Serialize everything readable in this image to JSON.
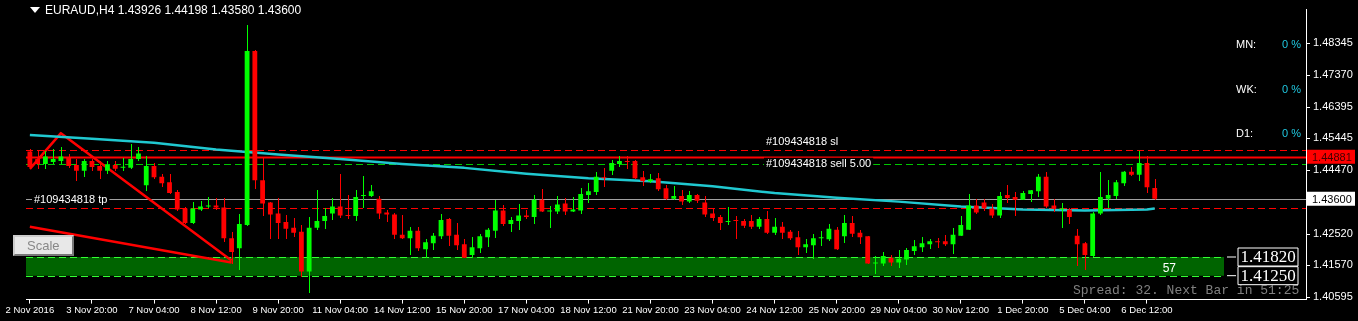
{
  "chart_data": {
    "type": "candlestick",
    "title": "EURAUD,H4 1.43926 1.44198 1.43580 1.43600",
    "categories": [
      "2 Nov 2016",
      null,
      null,
      null,
      null,
      null,
      null,
      null,
      "3 Nov 20:00",
      null,
      null,
      null,
      null,
      null,
      null,
      null,
      "7 Nov 04:00",
      null,
      null,
      null,
      null,
      null,
      null,
      null,
      "8 Nov 12:00",
      null,
      null,
      null,
      null,
      null,
      null,
      null,
      "9 Nov 20:00",
      null,
      null,
      null,
      null,
      null,
      null,
      null,
      "11 Nov 04:00",
      null,
      null,
      null,
      null,
      null,
      null,
      null,
      "14 Nov 12:00",
      null,
      null,
      null,
      null,
      null,
      null,
      null,
      "15 Nov 20:00",
      null,
      null,
      null,
      null,
      null,
      null,
      null,
      "17 Nov 04:00",
      null,
      null,
      null,
      null,
      null,
      null,
      null,
      "18 Nov 12:00",
      null,
      null,
      null,
      null,
      null,
      null,
      null,
      "21 Nov 20:00",
      null,
      null,
      null,
      null,
      null,
      null,
      null,
      "23 Nov 04:00",
      null,
      null,
      null,
      null,
      null,
      null,
      null,
      "24 Nov 12:00",
      null,
      null,
      null,
      null,
      null,
      null,
      null,
      "25 Nov 20:00",
      null,
      null,
      null,
      null,
      null,
      null,
      null,
      "29 Nov 04:00",
      null,
      null,
      null,
      null,
      null,
      null,
      null,
      "30 Nov 12:00",
      null,
      null,
      null,
      null,
      null,
      null,
      null,
      "1 Dec 20:00",
      null,
      null,
      null,
      null,
      null,
      null,
      null,
      "5 Dec 04:00",
      null,
      null,
      null,
      null,
      null,
      null,
      null,
      "6 Dec 12:00",
      null,
      null,
      null,
      null,
      null,
      null,
      null,
      null,
      null,
      null,
      null,
      null,
      null,
      null,
      null,
      null,
      null,
      null,
      null,
      null
    ],
    "ohlc": [
      [
        1.4504,
        1.451,
        1.4451,
        1.4457
      ],
      [
        1.4481,
        1.4507,
        1.4451,
        1.4466
      ],
      [
        1.4466,
        1.4504,
        1.4451,
        1.4489
      ],
      [
        1.4472,
        1.451,
        1.4466,
        1.4481
      ],
      [
        1.4475,
        1.4516,
        1.4466,
        1.4489
      ],
      [
        1.4486,
        1.4495,
        1.4454,
        1.446
      ],
      [
        1.4463,
        1.4481,
        1.4416,
        1.4445
      ],
      [
        1.4445,
        1.4481,
        1.4427,
        1.4475
      ],
      [
        1.4475,
        1.4481,
        1.4445,
        1.4457
      ],
      [
        1.446,
        1.4472,
        1.4422,
        1.4445
      ],
      [
        1.4445,
        1.4472,
        1.4436,
        1.4463
      ],
      [
        1.4463,
        1.4472,
        1.4445,
        1.4451
      ],
      [
        1.4454,
        1.4484,
        1.4445,
        1.4457
      ],
      [
        1.4454,
        1.4525,
        1.4451,
        1.4481
      ],
      [
        1.4481,
        1.4516,
        1.4475,
        1.4498
      ],
      [
        1.4401,
        1.4489,
        1.4386,
        1.446
      ],
      [
        1.446,
        1.4466,
        1.4422,
        1.4425
      ],
      [
        1.4427,
        1.4433,
        1.4398,
        1.4407
      ],
      [
        1.441,
        1.4433,
        1.4377,
        1.4377
      ],
      [
        1.438,
        1.4386,
        1.4324,
        1.4327
      ],
      [
        1.433,
        1.4333,
        1.4283,
        1.4286
      ],
      [
        1.4286,
        1.4348,
        1.4283,
        1.433
      ],
      [
        1.4327,
        1.4351,
        1.4324,
        1.4336
      ],
      [
        1.4336,
        1.4365,
        1.4333,
        1.4339
      ],
      [
        1.4339,
        1.4362,
        1.4327,
        1.4333
      ],
      [
        1.4333,
        1.4362,
        1.423,
        1.4239
      ],
      [
        1.4239,
        1.4256,
        1.4162,
        1.4197
      ],
      [
        1.4209,
        1.4312,
        1.4144,
        1.4283
      ],
      [
        1.428,
        1.4888,
        1.4277,
        1.4811
      ],
      [
        1.4811,
        1.4811,
        1.4392,
        1.4416
      ],
      [
        1.4416,
        1.4486,
        1.4309,
        1.4345
      ],
      [
        1.4348,
        1.4348,
        1.4239,
        1.4312
      ],
      [
        1.4315,
        1.436,
        1.4239,
        1.4286
      ],
      [
        1.4289,
        1.4309,
        1.4239,
        1.4268
      ],
      [
        1.4271,
        1.4298,
        1.4245,
        1.4256
      ],
      [
        1.4259,
        1.4277,
        1.4121,
        1.4138
      ],
      [
        1.4138,
        1.4304,
        1.4073,
        1.4271
      ],
      [
        1.4271,
        1.4386,
        1.4265,
        1.4292
      ],
      [
        1.4292,
        1.433,
        1.4268,
        1.4307
      ],
      [
        1.4315,
        1.436,
        1.4295,
        1.4336
      ],
      [
        1.4336,
        1.4433,
        1.4304,
        1.4309
      ],
      [
        1.4309,
        1.4371,
        1.4301,
        1.4307
      ],
      [
        1.4307,
        1.4386,
        1.4292,
        1.4365
      ],
      [
        1.4368,
        1.4427,
        1.4333,
        1.4371
      ],
      [
        1.4368,
        1.4401,
        1.4368,
        1.4383
      ],
      [
        1.436,
        1.4368,
        1.4298,
        1.4315
      ],
      [
        1.4318,
        1.4324,
        1.4289,
        1.4312
      ],
      [
        1.4312,
        1.4315,
        1.4239,
        1.425
      ],
      [
        1.425,
        1.4309,
        1.4239,
        1.4239
      ],
      [
        1.4239,
        1.4271,
        1.4191,
        1.4262
      ],
      [
        1.4262,
        1.4271,
        1.4203,
        1.4209
      ],
      [
        1.4206,
        1.4236,
        1.418,
        1.4227
      ],
      [
        1.4224,
        1.4253,
        1.4206,
        1.4247
      ],
      [
        1.4245,
        1.4312,
        1.4239,
        1.4295
      ],
      [
        1.4298,
        1.4301,
        1.4218,
        1.4247
      ],
      [
        1.425,
        1.4283,
        1.4206,
        1.4218
      ],
      [
        1.4221,
        1.4236,
        1.418,
        1.418
      ],
      [
        1.4188,
        1.4242,
        1.418,
        1.4212
      ],
      [
        1.4209,
        1.425,
        1.4197,
        1.4245
      ],
      [
        1.4242,
        1.4268,
        1.4215,
        1.4265
      ],
      [
        1.4262,
        1.4354,
        1.4242,
        1.4324
      ],
      [
        1.4324,
        1.4339,
        1.4277,
        1.4283
      ],
      [
        1.4283,
        1.4304,
        1.4259,
        1.4295
      ],
      [
        1.4292,
        1.4342,
        1.4265,
        1.4309
      ],
      [
        1.4309,
        1.4324,
        1.4298,
        1.4304
      ],
      [
        1.4304,
        1.4371,
        1.4283,
        1.4357
      ],
      [
        1.4357,
        1.4389,
        1.4321,
        1.4321
      ],
      [
        1.4321,
        1.4336,
        1.4271,
        1.4324
      ],
      [
        1.4321,
        1.4368,
        1.4315,
        1.4342
      ],
      [
        1.4345,
        1.4362,
        1.4312,
        1.4321
      ],
      [
        1.4321,
        1.4365,
        1.4321,
        1.4327
      ],
      [
        1.4324,
        1.4392,
        1.4315,
        1.4374
      ],
      [
        1.4371,
        1.4407,
        1.4348,
        1.4383
      ],
      [
        1.438,
        1.4439,
        1.4374,
        1.4427
      ],
      [
        1.4425,
        1.4451,
        1.4398,
        1.4422
      ],
      [
        1.4445,
        1.4475,
        1.4433,
        1.4469
      ],
      [
        1.4466,
        1.4489,
        1.4457,
        1.4475
      ],
      [
        1.4475,
        1.4489,
        1.4451,
        1.4472
      ],
      [
        1.4475,
        1.4475,
        1.4422,
        1.4422
      ],
      [
        1.4425,
        1.4442,
        1.4401,
        1.4413
      ],
      [
        1.4413,
        1.4433,
        1.441,
        1.4419
      ],
      [
        1.4422,
        1.4436,
        1.4386,
        1.4389
      ],
      [
        1.4392,
        1.4401,
        1.4357,
        1.436
      ],
      [
        1.436,
        1.4398,
        1.4357,
        1.4368
      ],
      [
        1.4368,
        1.4386,
        1.4342,
        1.4351
      ],
      [
        1.4351,
        1.4383,
        1.4348,
        1.4371
      ],
      [
        1.4371,
        1.4374,
        1.4348,
        1.4354
      ],
      [
        1.4348,
        1.4368,
        1.4307,
        1.4312
      ],
      [
        1.4315,
        1.4327,
        1.4292,
        1.4301
      ],
      [
        1.4304,
        1.4309,
        1.4265,
        1.4286
      ],
      [
        1.4289,
        1.4333,
        1.428,
        1.4292
      ],
      [
        1.4295,
        1.4307,
        1.4239,
        1.4292
      ],
      [
        1.4292,
        1.4295,
        1.4271,
        1.4277
      ],
      [
        1.4292,
        1.4309,
        1.4268,
        1.4274
      ],
      [
        1.4274,
        1.4304,
        1.4268,
        1.4298
      ],
      [
        1.4298,
        1.4321,
        1.4253,
        1.4256
      ],
      [
        1.4256,
        1.4301,
        1.425,
        1.4274
      ],
      [
        1.4274,
        1.4286,
        1.4239,
        1.4256
      ],
      [
        1.4259,
        1.4262,
        1.4236,
        1.4239
      ],
      [
        1.4242,
        1.4259,
        1.4191,
        1.4212
      ],
      [
        1.4212,
        1.4236,
        1.4197,
        1.4221
      ],
      [
        1.4218,
        1.425,
        1.4177,
        1.4239
      ],
      [
        1.4239,
        1.4259,
        1.4218,
        1.4239
      ],
      [
        1.4236,
        1.428,
        1.4233,
        1.4268
      ],
      [
        1.4265,
        1.4271,
        1.4206,
        1.4206
      ],
      [
        1.4245,
        1.4309,
        1.4227,
        1.4286
      ],
      [
        1.4286,
        1.4307,
        1.4245,
        1.4253
      ],
      [
        1.4256,
        1.4262,
        1.4224,
        1.4242
      ],
      [
        1.4245,
        1.4245,
        1.4162,
        1.4162
      ],
      [
        1.4162,
        1.4185,
        1.4132,
        1.4165
      ],
      [
        1.4162,
        1.4197,
        1.4156,
        1.4185
      ],
      [
        1.418,
        1.4188,
        1.4156,
        1.4165
      ],
      [
        1.4165,
        1.4203,
        1.415,
        1.4177
      ],
      [
        1.4174,
        1.4209,
        1.4159,
        1.4203
      ],
      [
        1.42,
        1.4233,
        1.4191,
        1.4215
      ],
      [
        1.4212,
        1.4242,
        1.42,
        1.4224
      ],
      [
        1.4221,
        1.4236,
        1.4209,
        1.423
      ],
      [
        1.423,
        1.4239,
        1.4212,
        1.4227
      ],
      [
        1.423,
        1.4247,
        1.4218,
        1.4221
      ],
      [
        1.4221,
        1.4268,
        1.4194,
        1.425
      ],
      [
        1.4247,
        1.4307,
        1.4247,
        1.428
      ],
      [
        1.4265,
        1.4374,
        1.4265,
        1.4339
      ],
      [
        1.4339,
        1.4357,
        1.4315,
        1.4318
      ],
      [
        1.4348,
        1.4357,
        1.4324,
        1.433
      ],
      [
        1.433,
        1.4342,
        1.4304,
        1.4309
      ],
      [
        1.4309,
        1.438,
        1.4304,
        1.4368
      ],
      [
        1.4371,
        1.4401,
        1.4348,
        1.4362
      ],
      [
        1.4365,
        1.438,
        1.4309,
        1.4357
      ],
      [
        1.4357,
        1.4383,
        1.4357,
        1.4377
      ],
      [
        1.4374,
        1.4386,
        1.4351,
        1.4386
      ],
      [
        1.4383,
        1.4433,
        1.4368,
        1.4427
      ],
      [
        1.4427,
        1.4439,
        1.4333,
        1.4336
      ],
      [
        1.4339,
        1.4357,
        1.4321,
        1.433
      ],
      [
        1.4327,
        1.4345,
        1.4271,
        1.433
      ],
      [
        1.4327,
        1.433,
        1.4283,
        1.4304
      ],
      [
        1.4247,
        1.4265,
        1.4156,
        1.4221
      ],
      [
        1.4224,
        1.4227,
        1.4144,
        1.4188
      ],
      [
        1.4185,
        1.4318,
        1.4183,
        1.4315
      ],
      [
        1.4315,
        1.4439,
        1.4312,
        1.4365
      ],
      [
        1.436,
        1.4416,
        1.4333,
        1.4371
      ],
      [
        1.4368,
        1.4416,
        1.4362,
        1.441
      ],
      [
        1.4407,
        1.4442,
        1.4401,
        1.4442
      ],
      [
        1.4442,
        1.4454,
        1.443,
        1.4433
      ],
      [
        1.4433,
        1.4504,
        1.4416,
        1.4469
      ],
      [
        1.4469,
        1.4489,
        1.438,
        1.4395
      ],
      [
        1.43926,
        1.44198,
        1.4358,
        1.436
      ],
      null,
      null,
      null,
      null,
      null,
      null,
      null,
      null,
      null,
      null,
      null,
      null,
      null,
      null,
      null,
      null,
      null,
      null,
      null
    ],
    "series": [
      {
        "type": "line",
        "color": "#20c8d0",
        "values": [
          1.4554,
          null,
          null,
          null,
          null,
          null,
          null,
          null,
          1.4543,
          null,
          null,
          null,
          null,
          null,
          null,
          null,
          1.4531,
          null,
          null,
          null,
          null,
          null,
          null,
          null,
          1.451,
          null,
          null,
          null,
          null,
          null,
          null,
          null,
          1.4495,
          null,
          null,
          null,
          null,
          null,
          null,
          null,
          1.4481,
          null,
          null,
          null,
          null,
          null,
          null,
          null,
          1.4466,
          null,
          null,
          null,
          null,
          null,
          null,
          null,
          1.4454,
          null,
          null,
          null,
          null,
          null,
          null,
          null,
          1.4436,
          null,
          null,
          null,
          null,
          null,
          null,
          null,
          1.4422,
          null,
          null,
          null,
          null,
          null,
          null,
          null,
          1.4413,
          null,
          null,
          null,
          null,
          null,
          null,
          null,
          1.4398,
          null,
          null,
          null,
          null,
          null,
          null,
          null,
          1.4377,
          null,
          null,
          null,
          null,
          null,
          null,
          null,
          1.4363,
          null,
          null,
          null,
          null,
          null,
          null,
          null,
          1.4351,
          null,
          null,
          null,
          null,
          null,
          null,
          null,
          1.4336,
          null,
          null,
          null,
          null,
          null,
          null,
          null,
          1.4327,
          null,
          null,
          null,
          null,
          null,
          null,
          null,
          1.4324,
          null,
          null,
          null,
          null,
          null,
          null,
          null,
          1.4327,
          1.433,
          null,
          null,
          null,
          null,
          null,
          null,
          null,
          null,
          null,
          null,
          null,
          null,
          null,
          null,
          null,
          null,
          null,
          null,
          null
        ]
      },
      {
        "type": "line",
        "color": "#ff0000",
        "values": [
          1.4451,
          null,
          null,
          null,
          1.456,
          null,
          null,
          null,
          null,
          null,
          null,
          null,
          null,
          null,
          null,
          null,
          null,
          null,
          null,
          null,
          null,
          null,
          null,
          null,
          null,
          null,
          1.4171,
          null,
          null,
          null,
          null,
          null,
          null,
          null,
          null,
          null,
          null,
          null,
          null,
          null,
          null,
          null,
          null,
          null,
          null,
          null,
          null,
          null,
          null,
          null,
          null,
          null,
          null,
          null,
          null,
          null,
          null,
          null,
          null,
          null,
          null,
          null,
          null,
          null,
          null,
          null,
          null,
          null,
          null,
          null,
          null,
          null,
          null,
          null,
          null,
          null,
          null,
          null,
          null,
          null,
          null,
          null,
          null,
          null,
          null,
          null,
          null,
          null,
          null,
          null,
          null,
          null,
          null,
          null,
          null,
          null,
          null,
          null,
          null,
          null,
          null,
          null,
          null,
          null,
          null,
          null,
          null,
          null,
          null,
          null,
          null,
          null,
          null,
          null,
          null,
          null,
          null,
          null,
          null,
          null,
          null,
          null,
          null,
          null,
          null,
          null,
          null,
          null,
          null,
          null,
          null,
          null,
          null,
          null,
          null,
          null,
          null,
          null,
          null,
          null,
          null,
          null,
          null,
          null,
          null,
          null,
          null,
          null,
          null,
          null,
          null,
          null,
          null,
          null,
          null,
          null,
          null,
          null,
          null,
          null,
          null,
          null,
          null,
          null,
          null
        ]
      },
      {
        "type": "line",
        "color": "#ff0000",
        "values": [
          1.4274,
          null,
          null,
          null,
          null,
          null,
          null,
          null,
          null,
          null,
          null,
          null,
          null,
          null,
          null,
          null,
          null,
          null,
          null,
          null,
          null,
          null,
          null,
          null,
          null,
          null,
          1.4165,
          null,
          null,
          null,
          null,
          null,
          null,
          null,
          null,
          null,
          null,
          null,
          null,
          null,
          null,
          null,
          null,
          null,
          null,
          null,
          null,
          null,
          null,
          null,
          null,
          null,
          null,
          null,
          null,
          null,
          null,
          null,
          null,
          null,
          null,
          null,
          null,
          null,
          null,
          null,
          null,
          null,
          null,
          null,
          null,
          null,
          null,
          null,
          null,
          null,
          null,
          null,
          null,
          null,
          null,
          null,
          null,
          null,
          null,
          null,
          null,
          null,
          null,
          null,
          null,
          null,
          null,
          null,
          null,
          null,
          null,
          null,
          null,
          null,
          null,
          null,
          null,
          null,
          null,
          null,
          null,
          null,
          null,
          null,
          null,
          null,
          null,
          null,
          null,
          null,
          null,
          null,
          null,
          null,
          null,
          null,
          null,
          null,
          null,
          null,
          null,
          null,
          null,
          null,
          null,
          null,
          null,
          null,
          null,
          null,
          null,
          null,
          null,
          null,
          null,
          null,
          null,
          null,
          null,
          null,
          null,
          null,
          null,
          null,
          null,
          null,
          null,
          null,
          null,
          null,
          null,
          null,
          null,
          null,
          null,
          null,
          null,
          null,
          null
        ]
      }
    ],
    "ylim": [
      1.4052,
      1.4937
    ],
    "yticks": [
      1.40595,
      {
        "value": 1.4157,
        "label": "1.41570"
      },
      {
        "value": 1.4252,
        "label": "1.42520"
      },
      {
        "value": 1.4447,
        "label": "1.44470"
      },
      1.45445,
      1.46395,
      {
        "value": 1.4737,
        "label": "1.47370"
      },
      1.48345
    ],
    "ref_lines": [
      {
        "axis": "y",
        "value": 1.451,
        "label": "#109434818 sl",
        "color": "#ff0000",
        "line_style": "dashed"
      },
      {
        "axis": "y",
        "value": 1.44881,
        "label": "#109434818 sell 5.00",
        "color": "#ff0000",
        "line_style": "solid"
      },
      {
        "axis": "y",
        "value": 1.4465,
        "color": "#00c800",
        "line_style": "dashed"
      },
      {
        "axis": "y",
        "value": 1.436,
        "label": "1.43600",
        "color": "#a0a0a0",
        "line_style": "solid"
      },
      {
        "axis": "y",
        "value": 1.4333,
        "label": "#109434818 tp",
        "color": "#ff0000",
        "line_style": "dashed"
      },
      {
        "axis": "y",
        "value": 1.4182,
        "label": "1.41820",
        "color": "#33ff33",
        "line_style": "dashed"
      },
      {
        "axis": "y",
        "value": 1.4125,
        "label": "1.41250",
        "color": "#33ff33",
        "line_style": "dashed"
      }
    ],
    "bands": [
      {
        "axis": "y",
        "from": 1.4125,
        "to": 1.4182,
        "label": "57",
        "color": "#006400"
      }
    ],
    "annotations": [
      "MN:",
      "0 %",
      "WK:",
      "0 %",
      "D1:",
      "0 %",
      "Scale",
      "Spread: 32. Next Bar in 51:25",
      "1.44881"
    ],
    "legend": false
  }
}
